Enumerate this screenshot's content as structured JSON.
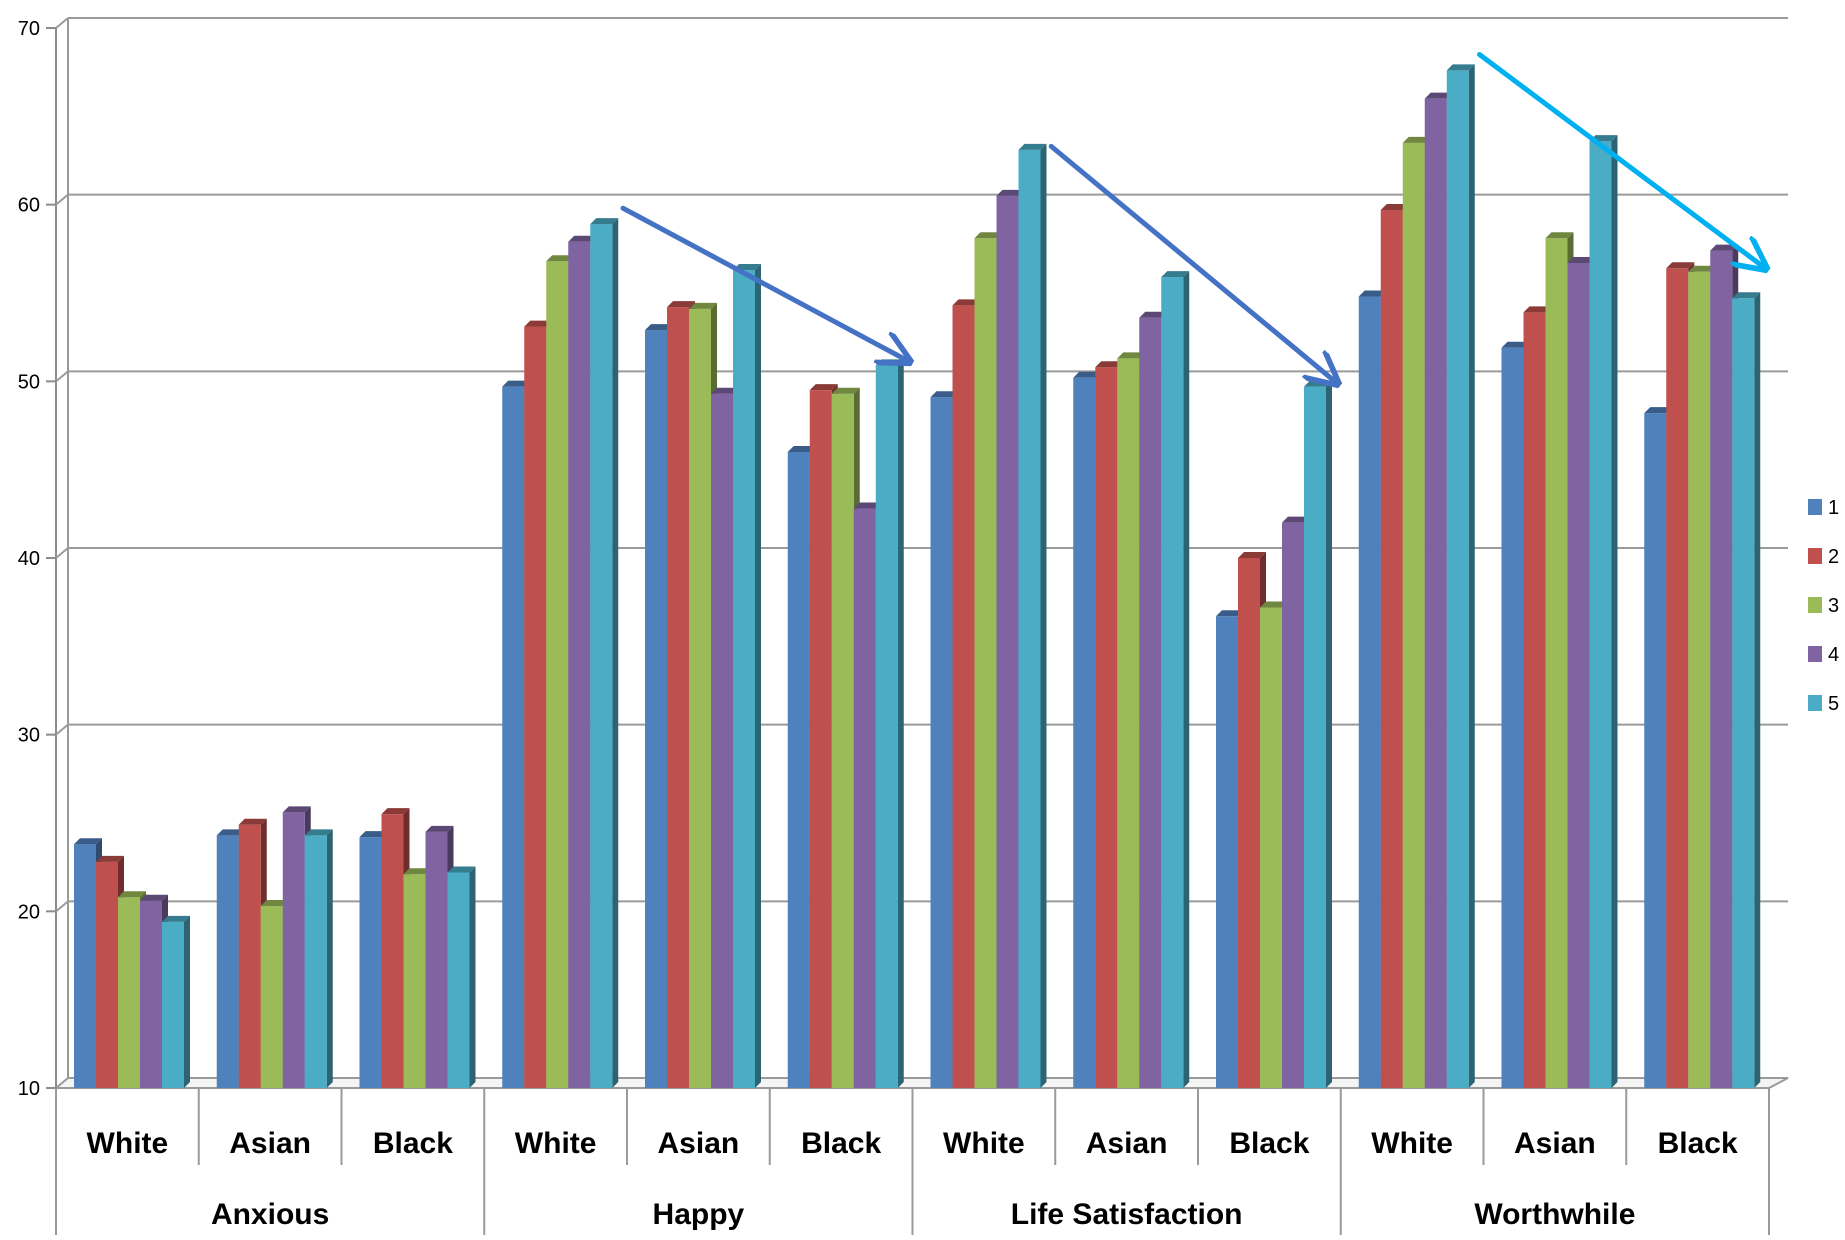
{
  "chart_data": {
    "type": "bar",
    "title": "",
    "xlabel": "",
    "ylabel": "",
    "ylim": [
      10,
      70
    ],
    "yticks": [
      "10",
      "20",
      "30",
      "40",
      "50",
      "60",
      "70"
    ],
    "grid": true,
    "legend_position": "right",
    "groups": [
      "Anxious",
      "Happy",
      "Life Satisfaction",
      "Worthwhile"
    ],
    "subcategories": [
      "White",
      "Asian",
      "Black"
    ],
    "categories": [
      "Anxious / White",
      "Anxious / Asian",
      "Anxious / Black",
      "Happy / White",
      "Happy / Asian",
      "Happy / Black",
      "Life Satisfaction / White",
      "Life Satisfaction / Asian",
      "Life Satisfaction / Black",
      "Worthwhile / White",
      "Worthwhile / Asian",
      "Worthwhile / Black"
    ],
    "series": [
      {
        "name": "1",
        "color": "#4F81BD",
        "values": [
          23.8,
          24.3,
          24.2,
          49.7,
          52.9,
          46.0,
          49.1,
          50.2,
          36.7,
          54.8,
          51.9,
          48.2
        ]
      },
      {
        "name": "2",
        "color": "#C0504D",
        "values": [
          22.8,
          24.9,
          25.5,
          53.1,
          54.2,
          49.5,
          54.3,
          50.8,
          40.0,
          59.7,
          53.9,
          56.4
        ]
      },
      {
        "name": "3",
        "color": "#9BBB59",
        "values": [
          20.8,
          20.3,
          22.1,
          56.8,
          54.1,
          49.3,
          58.1,
          51.3,
          37.2,
          63.5,
          58.1,
          56.2
        ]
      },
      {
        "name": "4",
        "color": "#8064A2",
        "values": [
          20.6,
          25.6,
          24.5,
          57.9,
          49.3,
          42.8,
          60.5,
          53.6,
          42.0,
          66.0,
          56.7,
          57.4
        ]
      },
      {
        "name": "5",
        "color": "#4BACC6",
        "values": [
          19.4,
          24.3,
          22.2,
          58.9,
          56.3,
          50.9,
          63.1,
          55.9,
          49.7,
          67.6,
          63.6,
          54.7
        ]
      }
    ],
    "annotations": [
      {
        "kind": "arrow",
        "color": "#4472C4",
        "from": {
          "category": "Happy / White",
          "value": 59.8
        },
        "to": {
          "category": "Happy / Black",
          "value": 51.2
        }
      },
      {
        "kind": "arrow",
        "color": "#4472C4",
        "from": {
          "category": "Life Satisfaction / White",
          "value": 63.3
        },
        "to": {
          "category": "Life Satisfaction / Black",
          "value": 50.0
        }
      },
      {
        "kind": "arrow",
        "color": "#00B0F0",
        "from": {
          "category": "Worthwhile / White",
          "value": 68.5
        },
        "to": {
          "category": "Worthwhile / Black",
          "value": 56.5
        }
      }
    ]
  }
}
